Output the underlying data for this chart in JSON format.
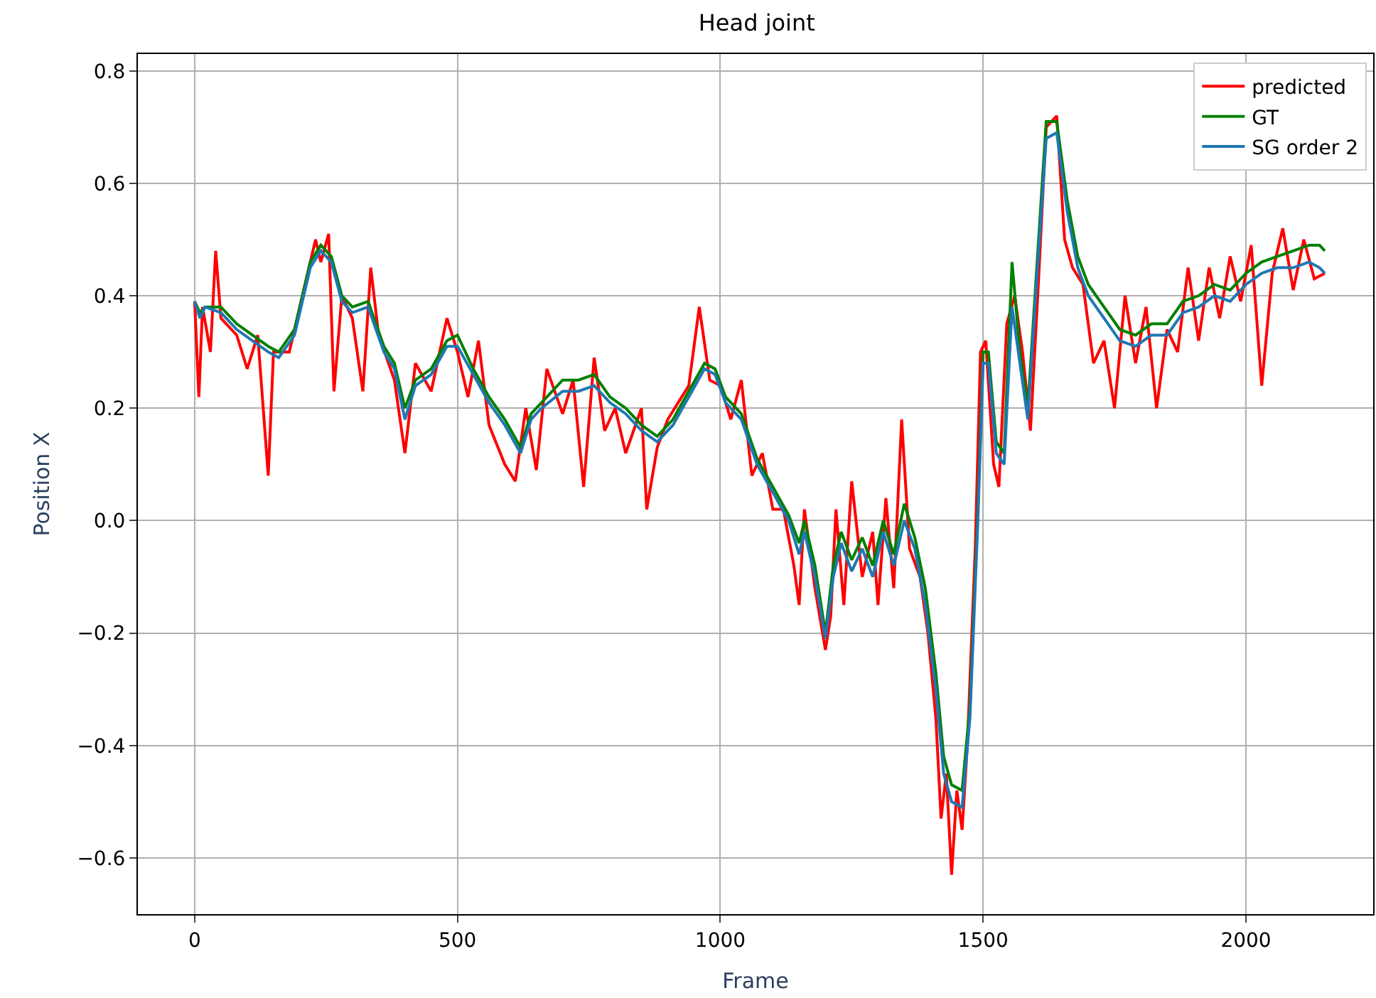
{
  "chart_data": {
    "type": "line",
    "title": "Head joint",
    "xlabel": "Frame",
    "ylabel": "Position X",
    "grid": true,
    "legend": "top right",
    "line_style": "solid",
    "marker": "none",
    "xlim": [
      -108,
      2242
    ],
    "ylim": [
      -0.7,
      0.83
    ],
    "xticks": [
      0,
      500,
      1000,
      1500,
      2000
    ],
    "yticks": [
      {
        "value": -0.6,
        "label": "−0.6"
      },
      {
        "value": -0.4,
        "label": "−0.4"
      },
      {
        "value": -0.2,
        "label": "−0.2"
      },
      {
        "value": 0,
        "label": "0.0"
      },
      {
        "value": 0.2,
        "label": "0.2"
      },
      {
        "value": 0.4,
        "label": "0.4"
      },
      {
        "value": 0.6,
        "label": "0.6"
      },
      {
        "value": 0.8,
        "label": "0.8"
      }
    ],
    "series": [
      {
        "name": "predicted",
        "color": "#ff0000",
        "x": [
          0,
          8,
          15,
          30,
          40,
          50,
          80,
          100,
          120,
          140,
          150,
          180,
          200,
          230,
          240,
          255,
          265,
          280,
          300,
          320,
          335,
          350,
          380,
          400,
          420,
          450,
          480,
          500,
          520,
          540,
          560,
          590,
          610,
          630,
          650,
          670,
          700,
          720,
          740,
          760,
          780,
          800,
          820,
          850,
          860,
          880,
          900,
          940,
          960,
          980,
          1000,
          1020,
          1040,
          1060,
          1080,
          1100,
          1120,
          1140,
          1150,
          1160,
          1180,
          1200,
          1210,
          1220,
          1235,
          1250,
          1270,
          1290,
          1300,
          1315,
          1330,
          1345,
          1360,
          1380,
          1395,
          1410,
          1420,
          1430,
          1440,
          1450,
          1460,
          1470,
          1485,
          1495,
          1505,
          1520,
          1530,
          1545,
          1560,
          1575,
          1590,
          1605,
          1620,
          1640,
          1655,
          1670,
          1690,
          1710,
          1730,
          1750,
          1770,
          1790,
          1810,
          1830,
          1850,
          1870,
          1890,
          1910,
          1930,
          1950,
          1970,
          1990,
          2010,
          2030,
          2050,
          2070,
          2090,
          2110,
          2130,
          2150
        ],
        "values": [
          0.39,
          0.22,
          0.38,
          0.3,
          0.48,
          0.36,
          0.33,
          0.27,
          0.33,
          0.08,
          0.3,
          0.3,
          0.38,
          0.5,
          0.46,
          0.51,
          0.23,
          0.4,
          0.36,
          0.23,
          0.45,
          0.33,
          0.25,
          0.12,
          0.28,
          0.23,
          0.36,
          0.3,
          0.22,
          0.32,
          0.17,
          0.1,
          0.07,
          0.2,
          0.09,
          0.27,
          0.19,
          0.25,
          0.06,
          0.29,
          0.16,
          0.2,
          0.12,
          0.2,
          0.02,
          0.13,
          0.18,
          0.24,
          0.38,
          0.25,
          0.24,
          0.18,
          0.25,
          0.08,
          0.12,
          0.02,
          0.02,
          -0.08,
          -0.15,
          0.02,
          -0.12,
          -0.23,
          -0.17,
          0.02,
          -0.15,
          0.07,
          -0.1,
          -0.02,
          -0.15,
          0.04,
          -0.12,
          0.18,
          -0.05,
          -0.1,
          -0.2,
          -0.35,
          -0.53,
          -0.45,
          -0.63,
          -0.48,
          -0.55,
          -0.4,
          -0.05,
          0.3,
          0.32,
          0.1,
          0.06,
          0.35,
          0.4,
          0.3,
          0.16,
          0.42,
          0.7,
          0.72,
          0.5,
          0.45,
          0.42,
          0.28,
          0.32,
          0.2,
          0.4,
          0.28,
          0.38,
          0.2,
          0.34,
          0.3,
          0.45,
          0.32,
          0.45,
          0.36,
          0.47,
          0.39,
          0.49,
          0.24,
          0.44,
          0.52,
          0.41,
          0.5,
          0.43,
          0.44
        ]
      },
      {
        "name": "GT",
        "color": "#008000",
        "x": [
          0,
          10,
          20,
          50,
          80,
          110,
          140,
          160,
          190,
          220,
          240,
          260,
          280,
          300,
          330,
          360,
          380,
          400,
          420,
          450,
          480,
          500,
          530,
          560,
          590,
          620,
          640,
          660,
          700,
          730,
          760,
          790,
          820,
          850,
          880,
          910,
          940,
          970,
          990,
          1010,
          1040,
          1070,
          1100,
          1130,
          1150,
          1160,
          1180,
          1200,
          1215,
          1230,
          1250,
          1270,
          1290,
          1310,
          1330,
          1350,
          1370,
          1390,
          1410,
          1425,
          1440,
          1460,
          1475,
          1490,
          1500,
          1510,
          1525,
          1540,
          1555,
          1570,
          1585,
          1600,
          1620,
          1640,
          1660,
          1680,
          1700,
          1730,
          1760,
          1790,
          1820,
          1850,
          1880,
          1910,
          1940,
          1970,
          2000,
          2030,
          2060,
          2090,
          2120,
          2140,
          2150
        ],
        "values": [
          0.39,
          0.37,
          0.38,
          0.38,
          0.35,
          0.33,
          0.31,
          0.3,
          0.34,
          0.46,
          0.49,
          0.47,
          0.4,
          0.38,
          0.39,
          0.31,
          0.28,
          0.2,
          0.25,
          0.27,
          0.32,
          0.33,
          0.27,
          0.22,
          0.18,
          0.13,
          0.19,
          0.21,
          0.25,
          0.25,
          0.26,
          0.22,
          0.2,
          0.17,
          0.15,
          0.18,
          0.23,
          0.28,
          0.27,
          0.22,
          0.19,
          0.11,
          0.06,
          0.01,
          -0.04,
          0.0,
          -0.08,
          -0.2,
          -0.08,
          -0.02,
          -0.07,
          -0.03,
          -0.08,
          0.0,
          -0.06,
          0.03,
          -0.03,
          -0.12,
          -0.27,
          -0.42,
          -0.47,
          -0.48,
          -0.33,
          0.02,
          0.3,
          0.3,
          0.14,
          0.12,
          0.46,
          0.3,
          0.2,
          0.42,
          0.71,
          0.71,
          0.57,
          0.47,
          0.42,
          0.38,
          0.34,
          0.33,
          0.35,
          0.35,
          0.39,
          0.4,
          0.42,
          0.41,
          0.44,
          0.46,
          0.47,
          0.48,
          0.49,
          0.49,
          0.48
        ]
      },
      {
        "name": "SG order 2",
        "color": "#1f77b4",
        "x": [
          0,
          10,
          20,
          50,
          80,
          110,
          140,
          160,
          190,
          220,
          240,
          260,
          280,
          300,
          330,
          360,
          380,
          400,
          420,
          450,
          480,
          500,
          530,
          560,
          590,
          620,
          640,
          660,
          700,
          730,
          760,
          790,
          820,
          850,
          880,
          910,
          940,
          970,
          990,
          1010,
          1040,
          1070,
          1100,
          1130,
          1150,
          1160,
          1180,
          1200,
          1215,
          1230,
          1250,
          1270,
          1290,
          1310,
          1330,
          1350,
          1370,
          1390,
          1410,
          1425,
          1440,
          1460,
          1475,
          1490,
          1500,
          1510,
          1525,
          1540,
          1555,
          1570,
          1585,
          1600,
          1620,
          1640,
          1660,
          1680,
          1700,
          1730,
          1760,
          1790,
          1820,
          1850,
          1880,
          1910,
          1940,
          1970,
          2000,
          2030,
          2060,
          2090,
          2120,
          2140,
          2150
        ],
        "values": [
          0.39,
          0.36,
          0.38,
          0.37,
          0.34,
          0.32,
          0.3,
          0.29,
          0.33,
          0.45,
          0.48,
          0.46,
          0.39,
          0.37,
          0.38,
          0.3,
          0.27,
          0.18,
          0.24,
          0.26,
          0.31,
          0.31,
          0.26,
          0.21,
          0.17,
          0.12,
          0.18,
          0.2,
          0.23,
          0.23,
          0.24,
          0.21,
          0.19,
          0.16,
          0.14,
          0.17,
          0.22,
          0.27,
          0.26,
          0.21,
          0.18,
          0.1,
          0.05,
          0.0,
          -0.06,
          -0.02,
          -0.1,
          -0.21,
          -0.1,
          -0.04,
          -0.09,
          -0.05,
          -0.1,
          -0.02,
          -0.08,
          0.0,
          -0.05,
          -0.15,
          -0.3,
          -0.45,
          -0.5,
          -0.51,
          -0.35,
          0.0,
          0.28,
          0.28,
          0.12,
          0.1,
          0.38,
          0.28,
          0.18,
          0.4,
          0.68,
          0.69,
          0.55,
          0.45,
          0.4,
          0.36,
          0.32,
          0.31,
          0.33,
          0.33,
          0.37,
          0.38,
          0.4,
          0.39,
          0.42,
          0.44,
          0.45,
          0.45,
          0.46,
          0.45,
          0.44
        ]
      }
    ]
  }
}
